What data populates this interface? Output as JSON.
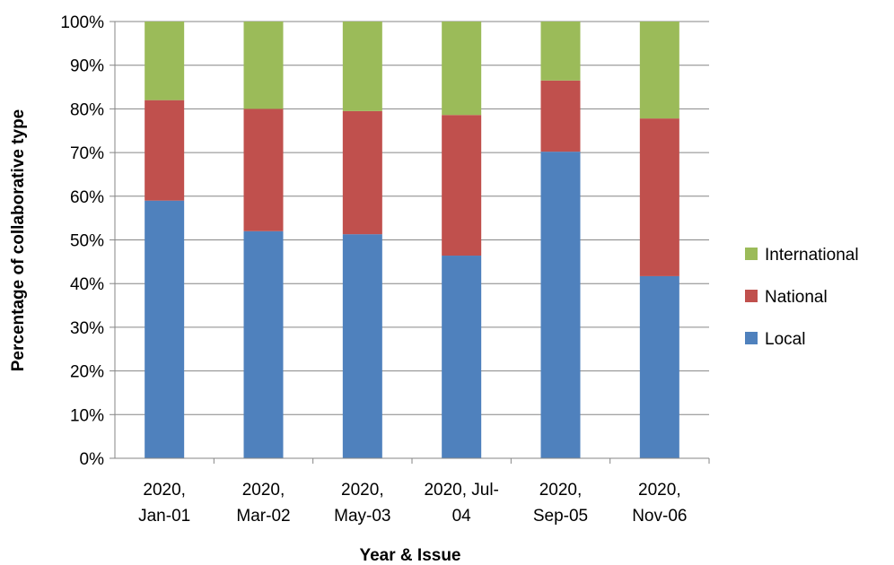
{
  "chart_data": {
    "type": "bar",
    "stacked": true,
    "percent": true,
    "xlabel": "Year & Issue",
    "ylabel": "Percentage of collaborative type",
    "ylim": [
      0,
      100
    ],
    "y_ticks": [
      "0%",
      "10%",
      "20%",
      "30%",
      "40%",
      "50%",
      "60%",
      "70%",
      "80%",
      "90%",
      "100%"
    ],
    "grid": true,
    "legend_position": "right",
    "categories": [
      [
        "2020,",
        "Jan-01"
      ],
      [
        "2020,",
        "Mar-02"
      ],
      [
        "2020,",
        "May-03"
      ],
      [
        "2020, Jul-",
        "04"
      ],
      [
        "2020,",
        "Sep-05"
      ],
      [
        "2020,",
        "Nov-06"
      ]
    ],
    "series": [
      {
        "name": "Local",
        "color": "#4f81bd",
        "values": [
          59,
          52,
          51.3,
          46.4,
          70.2,
          41.7
        ]
      },
      {
        "name": "National",
        "color": "#c0504d",
        "values": [
          23,
          28,
          28.2,
          32.2,
          16.3,
          36.1
        ]
      },
      {
        "name": "International",
        "color": "#9bbb59",
        "values": [
          18,
          20,
          20.5,
          21.4,
          13.5,
          22.2
        ]
      }
    ]
  }
}
